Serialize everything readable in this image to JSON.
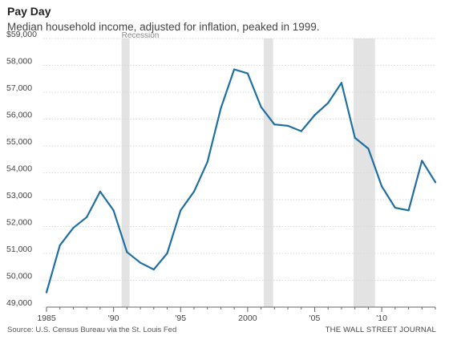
{
  "title": "Pay Day",
  "subtitle": "Median household income, adjusted for inflation, peaked in 1999.",
  "source": "Source: U.S. Census Bureau via the St. Louis Fed",
  "publisher": "THE WALL STREET JOURNAL",
  "colors": {
    "line": "#1f6fa3",
    "recession": "#e3e3e3",
    "grid": "#d8d8d8",
    "axis": "#666666"
  },
  "chart_data": {
    "type": "line",
    "title": "Pay Day",
    "subtitle": "Median household income, adjusted for inflation, peaked in 1999.",
    "xlabel": "",
    "ylabel": "",
    "xlim": [
      1985,
      2014
    ],
    "ylim": [
      49000,
      59000
    ],
    "grid": true,
    "y_ticks": [
      49000,
      50000,
      51000,
      52000,
      53000,
      54000,
      55000,
      56000,
      57000,
      58000,
      59000
    ],
    "y_tick_labels": [
      "49,000",
      "50,000",
      "51,000",
      "52,000",
      "53,000",
      "54,000",
      "55,000",
      "56,000",
      "57,000",
      "58,000",
      "$59,000"
    ],
    "x_ticks": [
      1985,
      1990,
      1995,
      2000,
      2005,
      2010
    ],
    "x_tick_labels": [
      "1985",
      "'90",
      "'95",
      "2000",
      "'05",
      "'10"
    ],
    "recession_label": "Recession",
    "recessions": [
      [
        1990.6,
        1991.2
      ],
      [
        2001.2,
        2001.9
      ],
      [
        2007.9,
        2009.5
      ]
    ],
    "x": [
      1985,
      1986,
      1987,
      1988,
      1989,
      1990,
      1991,
      1992,
      1993,
      1994,
      1995,
      1996,
      1997,
      1998,
      1999,
      2000,
      2001,
      2002,
      2003,
      2004,
      2005,
      2006,
      2007,
      2008,
      2009,
      2010,
      2011,
      2012,
      2013,
      2014
    ],
    "values": [
      49550,
      51300,
      51950,
      52350,
      53300,
      52600,
      51050,
      50650,
      50400,
      51000,
      52600,
      53300,
      54400,
      56400,
      57850,
      57700,
      56450,
      55800,
      55750,
      55550,
      56150,
      56600,
      57350,
      55300,
      54900,
      53500,
      52700,
      52600,
      54450,
      53650
    ]
  }
}
